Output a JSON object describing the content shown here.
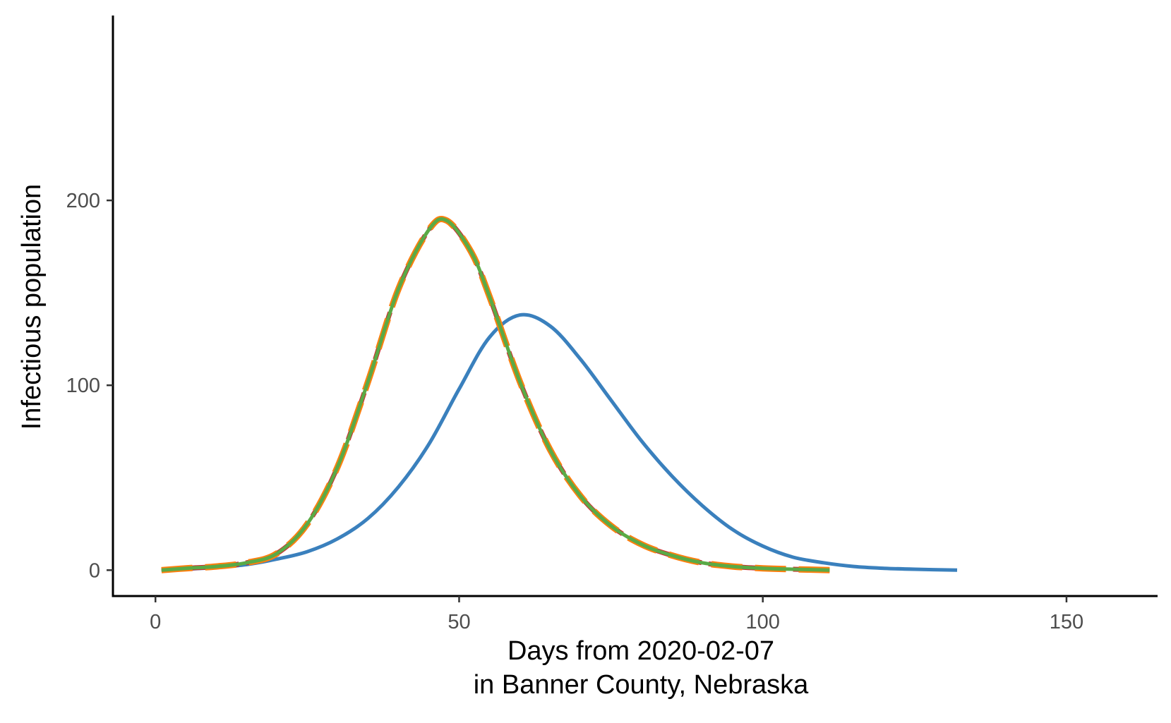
{
  "chart_data": {
    "type": "line",
    "title": "",
    "xlabel": "Days from 2020-02-07",
    "xlabel_line2": "in Banner County, Nebraska",
    "ylabel": "Infectious population",
    "xlim": [
      -7,
      165
    ],
    "ylim": [
      -14,
      300
    ],
    "grid": false,
    "x_ticks": [
      0,
      50,
      100,
      150
    ],
    "x_tick_labels": [
      "0",
      "50",
      "100",
      "150"
    ],
    "y_ticks": [
      0,
      100,
      200
    ],
    "y_tick_labels": [
      "0",
      "100",
      "200"
    ],
    "series": [
      {
        "color": "#3a80bd",
        "dash": "solid",
        "x": [
          1,
          5,
          10,
          15,
          20,
          25,
          30,
          35,
          40,
          45,
          50,
          55,
          60,
          65,
          70,
          75,
          80,
          85,
          90,
          95,
          100,
          105,
          110,
          115,
          120,
          125,
          132
        ],
        "y": [
          0,
          0.5,
          1.5,
          3,
          6,
          10,
          17,
          28,
          45,
          68,
          98,
          126,
          138,
          132,
          114,
          92,
          70,
          51,
          35,
          22,
          13,
          7,
          4,
          2,
          1,
          0.5,
          0
        ]
      },
      {
        "color": "#d3282d",
        "dash": "dashed",
        "x": [
          1,
          5,
          10,
          15,
          20,
          25,
          30,
          35,
          40,
          45,
          48,
          52,
          55,
          60,
          65,
          70,
          75,
          80,
          85,
          90,
          95,
          100,
          105,
          111
        ],
        "y": [
          0,
          1,
          2,
          4,
          9,
          25,
          56,
          102,
          152,
          184,
          189,
          172,
          148,
          102,
          65,
          40,
          24,
          14,
          8,
          4,
          2,
          1,
          0.5,
          0
        ]
      },
      {
        "color": "#ff7f0e",
        "dash": "long-dash",
        "x": [
          1,
          5,
          10,
          15,
          20,
          25,
          30,
          35,
          40,
          45,
          48,
          52,
          55,
          60,
          65,
          70,
          75,
          80,
          85,
          90,
          95,
          100,
          105,
          111
        ],
        "y": [
          0,
          1,
          2,
          4,
          9,
          25,
          56,
          102,
          152,
          184,
          189,
          172,
          148,
          102,
          65,
          40,
          24,
          14,
          8,
          4,
          2,
          1,
          0.5,
          0
        ]
      },
      {
        "color": "#5aaa46",
        "dash": "solid",
        "x": [
          1,
          5,
          10,
          15,
          20,
          25,
          30,
          35,
          40,
          45,
          48,
          52,
          55,
          60,
          65,
          70,
          75,
          80,
          85,
          90,
          95,
          100,
          105,
          111
        ],
        "y": [
          0,
          1,
          2,
          4,
          9,
          25,
          56,
          102,
          152,
          184,
          189,
          172,
          148,
          102,
          65,
          40,
          24,
          14,
          8,
          4,
          2,
          1,
          0.5,
          0
        ]
      }
    ]
  }
}
